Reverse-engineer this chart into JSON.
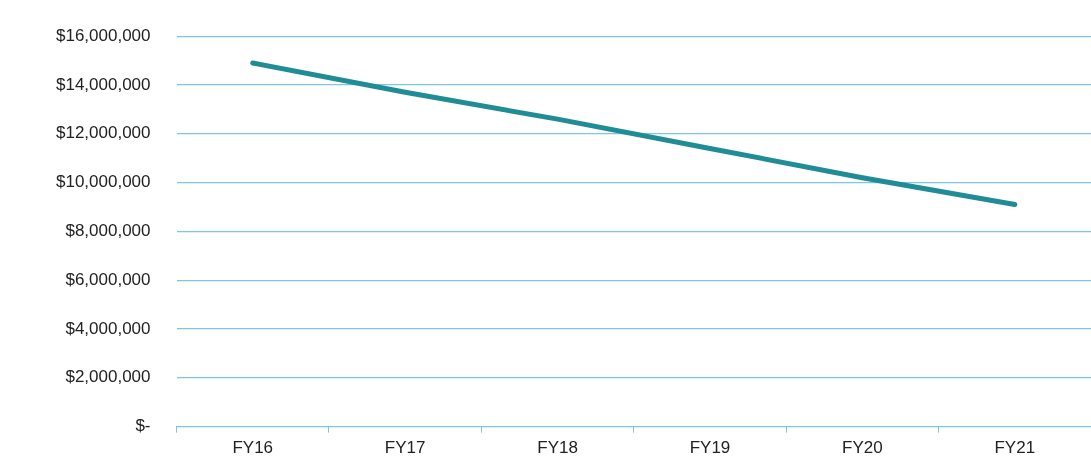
{
  "chart_data": {
    "type": "line",
    "categories": [
      "FY16",
      "FY17",
      "FY18",
      "FY19",
      "FY20",
      "FY21"
    ],
    "series": [
      {
        "color": "#1f8c96",
        "values": [
          14900000,
          13700000,
          12600000,
          11400000,
          10200000,
          9100000
        ]
      }
    ],
    "ylim": [
      0,
      16000000
    ],
    "yticks": [
      {
        "value": 0,
        "label": "$-"
      },
      {
        "value": 2000000,
        "label": "$2,000,000"
      },
      {
        "value": 4000000,
        "label": "$4,000,000"
      },
      {
        "value": 6000000,
        "label": "$6,000,000"
      },
      {
        "value": 8000000,
        "label": "$8,000,000"
      },
      {
        "value": 10000000,
        "label": "$10,000,000"
      },
      {
        "value": 12000000,
        "label": "$12,000,000"
      },
      {
        "value": 14000000,
        "label": "$14,000,000"
      },
      {
        "value": 16000000,
        "label": "$16,000,000"
      }
    ],
    "grid": "y",
    "marker": "none",
    "line_style": "solid",
    "legend": false
  }
}
